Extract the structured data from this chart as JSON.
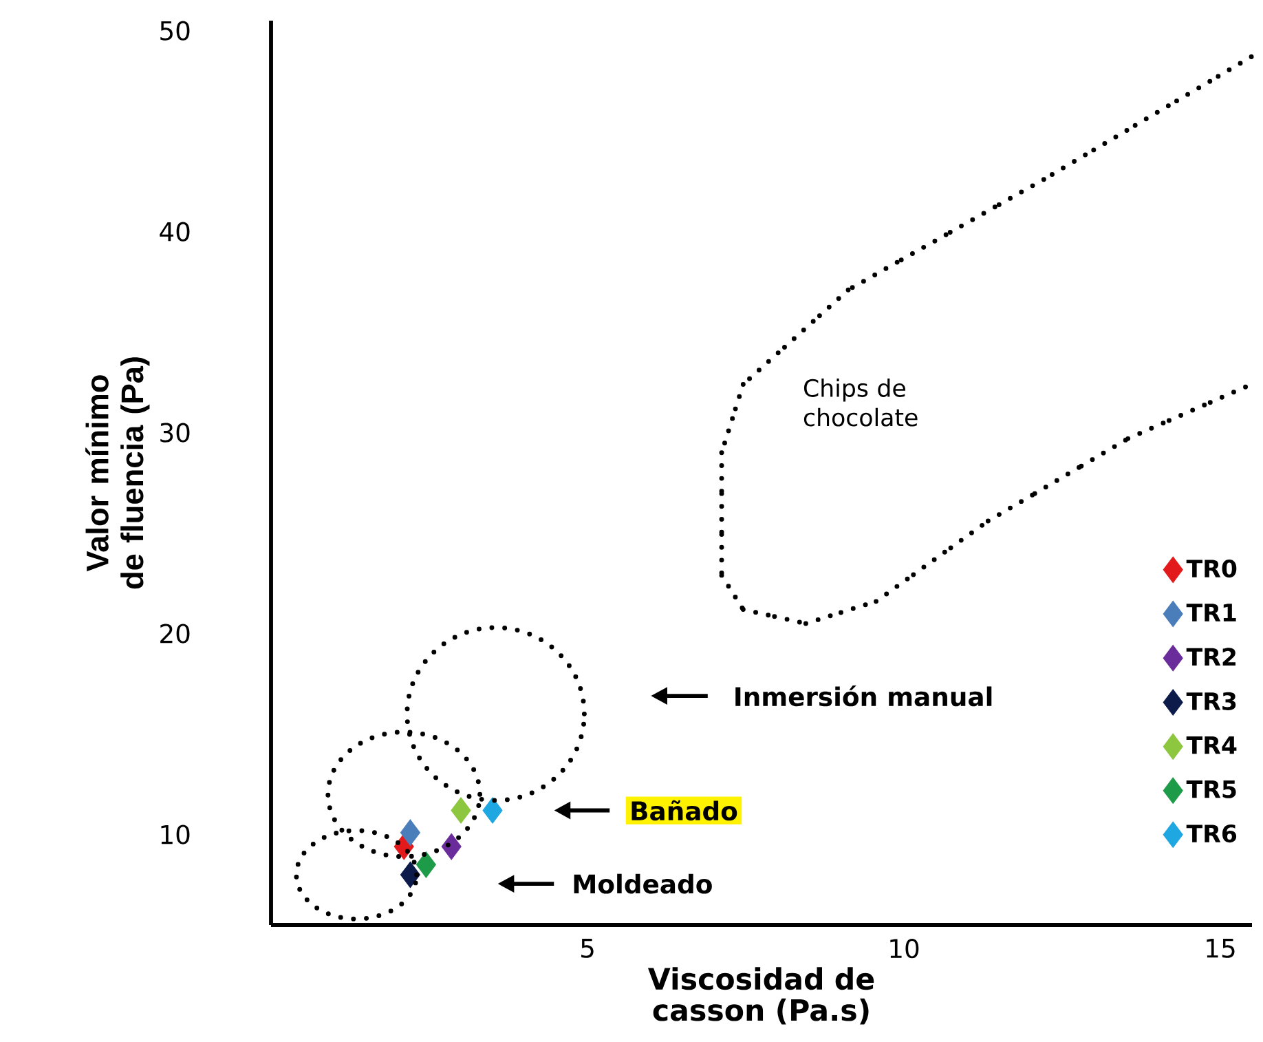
{
  "chart_data": {
    "type": "scatter",
    "xlabel": "Viscosidad  de casson (Pa.s)",
    "ylabel": "Valor mínimo de fluencia (Pa)",
    "xlim": [
      0,
      15.5
    ],
    "ylim": [
      5.5,
      50.5
    ],
    "xticks": [
      5,
      10,
      15
    ],
    "yticks": [
      10,
      20,
      30,
      40,
      50
    ],
    "marker": "diamond",
    "legend": "bottom right",
    "annotations": [
      "Chips de chocolate",
      "Inmersión manual",
      "Bañado",
      "Moldeado"
    ],
    "series": [
      {
        "name": "TR0",
        "color": "#e31a1c",
        "x": [
          2.1
        ],
        "values": [
          9.4
        ]
      },
      {
        "name": "TR1",
        "color": "#4a7ebb",
        "x": [
          2.2
        ],
        "values": [
          10.1
        ]
      },
      {
        "name": "TR2",
        "color": "#6a2c9a",
        "x": [
          2.85
        ],
        "values": [
          9.4
        ]
      },
      {
        "name": "TR3",
        "color": "#0d1b4b",
        "x": [
          2.2
        ],
        "values": [
          8.0
        ]
      },
      {
        "name": "TR4",
        "color": "#8dc63f",
        "x": [
          3.0
        ],
        "values": [
          11.2
        ]
      },
      {
        "name": "TR5",
        "color": "#1e9b48",
        "x": [
          2.45
        ],
        "values": [
          8.5
        ]
      },
      {
        "name": "TR6",
        "color": "#1ea7e1",
        "x": [
          3.5
        ],
        "values": [
          11.2
        ]
      }
    ]
  }
}
